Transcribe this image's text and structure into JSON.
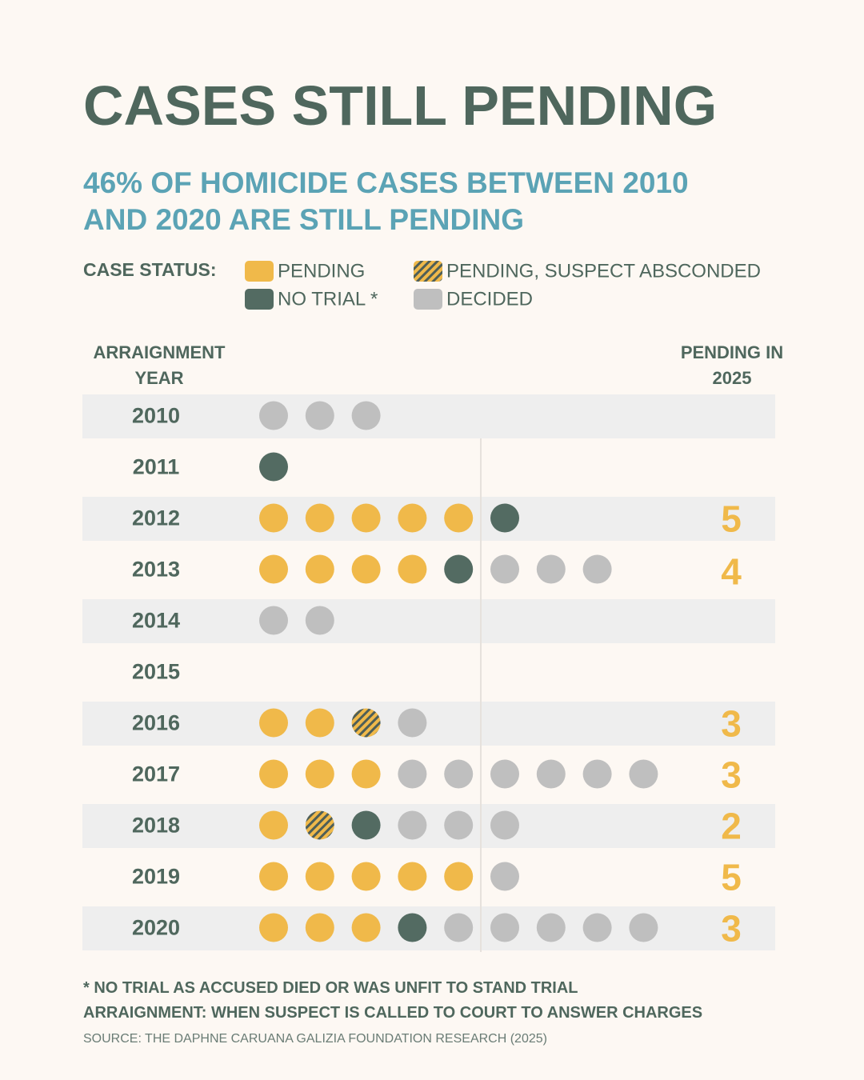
{
  "chart_data": {
    "type": "dot-matrix",
    "title": "CASES STILL PENDING",
    "subtitle": "46% OF HOMICIDE CASES BETWEEN 2010 AND 2020 ARE STILL PENDING",
    "legend_label": "CASE STATUS:",
    "x_label": "ARRAIGNMENT YEAR",
    "pending_label": "PENDING IN 2025",
    "categories": [
      "2010",
      "2011",
      "2012",
      "2013",
      "2014",
      "2015",
      "2016",
      "2017",
      "2018",
      "2019",
      "2020"
    ],
    "series": [
      {
        "name": "PENDING",
        "color": "#f0b94a",
        "values": [
          0,
          0,
          5,
          4,
          0,
          0,
          2,
          3,
          1,
          5,
          3
        ]
      },
      {
        "name": "PENDING, SUSPECT ABSCONDED",
        "color": "#f0b94a",
        "hatch": "#4f5f58",
        "values": [
          0,
          0,
          0,
          0,
          0,
          0,
          1,
          0,
          1,
          0,
          0
        ]
      },
      {
        "name": "NO TRIAL *",
        "color": "#536b62",
        "values": [
          0,
          1,
          1,
          1,
          0,
          0,
          0,
          0,
          1,
          0,
          1
        ]
      },
      {
        "name": "DECIDED",
        "color": "#bfbfbf",
        "values": [
          3,
          0,
          0,
          3,
          2,
          0,
          1,
          6,
          3,
          1,
          5
        ]
      }
    ],
    "pending_in_2025": [
      null,
      null,
      5,
      4,
      null,
      null,
      3,
      3,
      2,
      5,
      3
    ],
    "pending_color": "#f0b94a",
    "notes": [
      "* NO TRIAL AS ACCUSED DIED OR WAS UNFIT TO STAND TRIAL",
      "ARRAIGNMENT: WHEN SUSPECT IS CALLED TO COURT TO ANSWER CHARGES"
    ],
    "source": "SOURCE: THE DAPHNE CARUANA GALIZIA FOUNDATION RESEARCH (2025)"
  }
}
